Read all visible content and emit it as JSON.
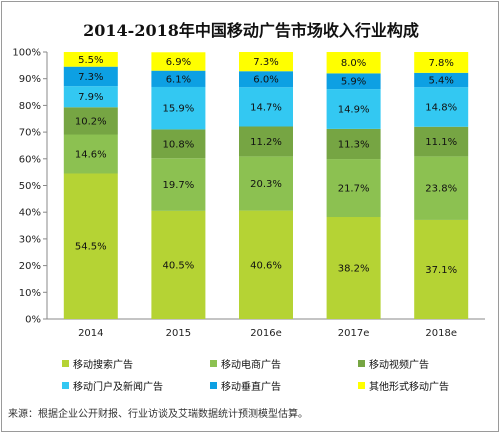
{
  "chart_data": {
    "type": "bar",
    "stacked": true,
    "title": "2014-2018年中国移动广告市场收入行业构成",
    "categories": [
      "2014",
      "2015",
      "2016e",
      "2017e",
      "2018e"
    ],
    "ylim": [
      0,
      100
    ],
    "yticks": [
      "0%",
      "10%",
      "20%",
      "30%",
      "40%",
      "50%",
      "60%",
      "70%",
      "80%",
      "90%",
      "100%"
    ],
    "grid": false,
    "legend_position": "bottom",
    "series": [
      {
        "name": "移动搜索广告",
        "color": "#b5d334",
        "values": [
          54.5,
          40.5,
          40.6,
          38.2,
          37.1
        ],
        "labels": [
          "54.5%",
          "40.5%",
          "40.6%",
          "38.2%",
          "37.1%"
        ]
      },
      {
        "name": "移动电商广告",
        "color": "#8cc151",
        "values": [
          14.6,
          19.7,
          20.3,
          21.7,
          23.8
        ],
        "labels": [
          "14.6%",
          "19.7%",
          "20.3%",
          "21.7%",
          "23.8%"
        ]
      },
      {
        "name": "移动视频广告",
        "color": "#76a543",
        "values": [
          10.2,
          10.8,
          11.2,
          11.3,
          11.1
        ],
        "labels": [
          "10.2%",
          "10.8%",
          "11.2%",
          "11.3%",
          "11.1%"
        ]
      },
      {
        "name": "移动门户及新闻广告",
        "color": "#33c8f2",
        "values": [
          7.9,
          15.9,
          14.7,
          14.9,
          14.8
        ],
        "labels": [
          "7.9%",
          "15.9%",
          "14.7%",
          "14.9%",
          "14.8%"
        ]
      },
      {
        "name": "移动垂直广告",
        "color": "#0da0e3",
        "values": [
          7.3,
          6.1,
          6.0,
          5.9,
          5.4
        ],
        "labels": [
          "7.3%",
          "6.1%",
          "6.0%",
          "5.9%",
          "5.4%"
        ]
      },
      {
        "name": "其他形式移动广告",
        "color": "#ffff00",
        "values": [
          5.5,
          6.9,
          7.3,
          8.0,
          7.8
        ],
        "labels": [
          "5.5%",
          "6.9%",
          "7.3%",
          "8.0%",
          "7.8%"
        ]
      }
    ]
  },
  "source_note": "来源：根据企业公开财报、行业访谈及艾瑞数据统计预测模型估算。"
}
